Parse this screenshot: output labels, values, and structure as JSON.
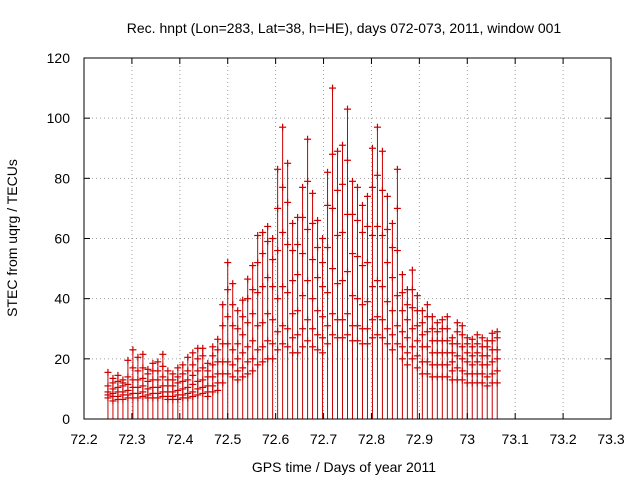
{
  "chart_data": {
    "type": "scatter",
    "title": "Rec. hnpt (Lon=283, Lat=38, h=HE), days 072-073, 2011, window 001",
    "xlabel": "GPS time / Days of year 2011",
    "ylabel": "STEC from uqrg / TECUs",
    "xlim": [
      72.2,
      73.3
    ],
    "ylim": [
      0,
      120
    ],
    "x_ticks": [
      "72.2",
      "72.3",
      "72.4",
      "72.5",
      "72.6",
      "72.7",
      "72.8",
      "72.9",
      "73",
      "73.1",
      "73.2",
      "73.3"
    ],
    "y_ticks": [
      "0",
      "20",
      "40",
      "60",
      "80",
      "100",
      "120"
    ],
    "grid": true,
    "marker": "+",
    "error_bars": "vertical, from 0 to point value",
    "color": "#cc0000",
    "x_start": 72.25,
    "x_step": 0.0104167,
    "series": [
      {
        "values": [
          15.5,
          13.5,
          14.5,
          12,
          19.5,
          23,
          20.5,
          21.5,
          16.5,
          18.5,
          19,
          21.5,
          16,
          15,
          17,
          18,
          20.5,
          22,
          23.5,
          23.5,
          18.5,
          24,
          26.5,
          38,
          52,
          45,
          36,
          39.5,
          46.5,
          51,
          61,
          62,
          64,
          60,
          83,
          97,
          85,
          65,
          67,
          77,
          93,
          75,
          66,
          60,
          82,
          110,
          89,
          91,
          103,
          79,
          77,
          71,
          74,
          90,
          97,
          89,
          74,
          65,
          83,
          48,
          43,
          49.5,
          41,
          36,
          38,
          34,
          32,
          33,
          34,
          27,
          32,
          31,
          27,
          26.5,
          28,
          27,
          26,
          28.5,
          29
        ]
      },
      {
        "values": [
          11,
          12,
          12.5,
          13,
          14,
          17,
          16,
          17,
          15,
          16,
          16,
          17.5,
          13,
          13,
          14,
          15,
          16,
          18,
          20,
          21,
          16,
          21,
          23,
          31,
          43,
          38,
          30,
          34,
          40,
          43,
          52,
          55,
          59,
          53,
          70,
          77,
          72,
          56,
          58,
          67,
          79,
          65,
          57,
          52,
          71,
          88,
          76,
          78,
          86,
          68,
          66,
          62,
          64,
          77,
          81,
          76,
          63,
          57,
          70,
          42,
          38,
          43,
          36,
          32,
          34,
          30,
          29,
          30,
          30,
          25,
          29,
          28,
          25,
          24,
          25,
          24,
          24,
          26,
          27
        ]
      },
      {
        "values": [
          9,
          10,
          10.5,
          11,
          11.5,
          13,
          13,
          13.5,
          12.5,
          13,
          13,
          14,
          11,
          11,
          12,
          12.5,
          13,
          14.5,
          16,
          17,
          14,
          18,
          19,
          25,
          34,
          31,
          25,
          28,
          32,
          35,
          42,
          44,
          47,
          44,
          56,
          62,
          58,
          46,
          48,
          55,
          63,
          53,
          47,
          44,
          57,
          70,
          61,
          62,
          68,
          55,
          54,
          51,
          52,
          61,
          64,
          61,
          52,
          47,
          56,
          36,
          33,
          37,
          31,
          28,
          29,
          26,
          26,
          26,
          26,
          22,
          25,
          24,
          22,
          21,
          22,
          21,
          21,
          23,
          23
        ]
      },
      {
        "values": [
          8,
          8.5,
          9,
          9,
          9.5,
          10.5,
          10.5,
          11,
          10,
          10.5,
          10.5,
          11,
          9,
          9,
          9.5,
          10,
          10.5,
          11.5,
          12.5,
          13,
          11,
          14,
          15,
          19,
          25,
          23,
          20,
          22,
          24,
          26,
          31,
          32,
          35,
          33,
          40,
          44,
          42,
          35,
          36,
          41,
          46,
          40,
          36,
          34,
          42,
          50,
          45,
          46,
          49,
          41,
          40,
          38,
          39,
          44,
          46,
          44,
          39,
          36,
          41,
          29,
          27,
          30,
          26,
          24,
          24,
          22,
          22,
          22,
          22,
          19,
          21,
          20,
          19,
          18,
          19,
          18,
          18,
          19,
          20
        ]
      },
      {
        "values": [
          7,
          7.5,
          7.5,
          8,
          8,
          8.5,
          8.5,
          9,
          8,
          8.5,
          8.5,
          9,
          7.5,
          7.5,
          8,
          8,
          8.5,
          9,
          10,
          10.5,
          9,
          11,
          12,
          15,
          19,
          18,
          16,
          17,
          19,
          20,
          23,
          24,
          26,
          25,
          29,
          31,
          30,
          27,
          28,
          30,
          33,
          30,
          28,
          27,
          31,
          35,
          33,
          33,
          35,
          31,
          31,
          30,
          30,
          33,
          34,
          33,
          30,
          28,
          31,
          24,
          22,
          24,
          21,
          19,
          19,
          18,
          18,
          18,
          18,
          16,
          17,
          16,
          15,
          15,
          15,
          15,
          14,
          15,
          16
        ]
      },
      {
        "values": [
          null,
          6,
          6.5,
          6.5,
          7,
          7,
          7,
          7.5,
          7,
          7,
          7,
          7.5,
          6.5,
          6.5,
          6.5,
          7,
          7,
          7.5,
          8,
          8.5,
          7.5,
          9,
          9.5,
          12,
          15,
          14,
          13,
          14,
          15,
          16,
          18,
          19,
          20,
          20,
          23,
          25,
          24,
          22,
          22,
          24,
          26,
          24,
          23,
          22,
          25,
          28,
          27,
          27,
          28,
          26,
          26,
          25,
          25,
          27,
          28,
          27,
          25,
          23,
          25,
          20,
          18,
          20,
          17,
          15,
          15,
          14,
          14,
          14,
          14,
          13,
          13,
          13,
          12,
          12,
          12,
          12,
          11,
          12,
          12
        ]
      }
    ]
  }
}
